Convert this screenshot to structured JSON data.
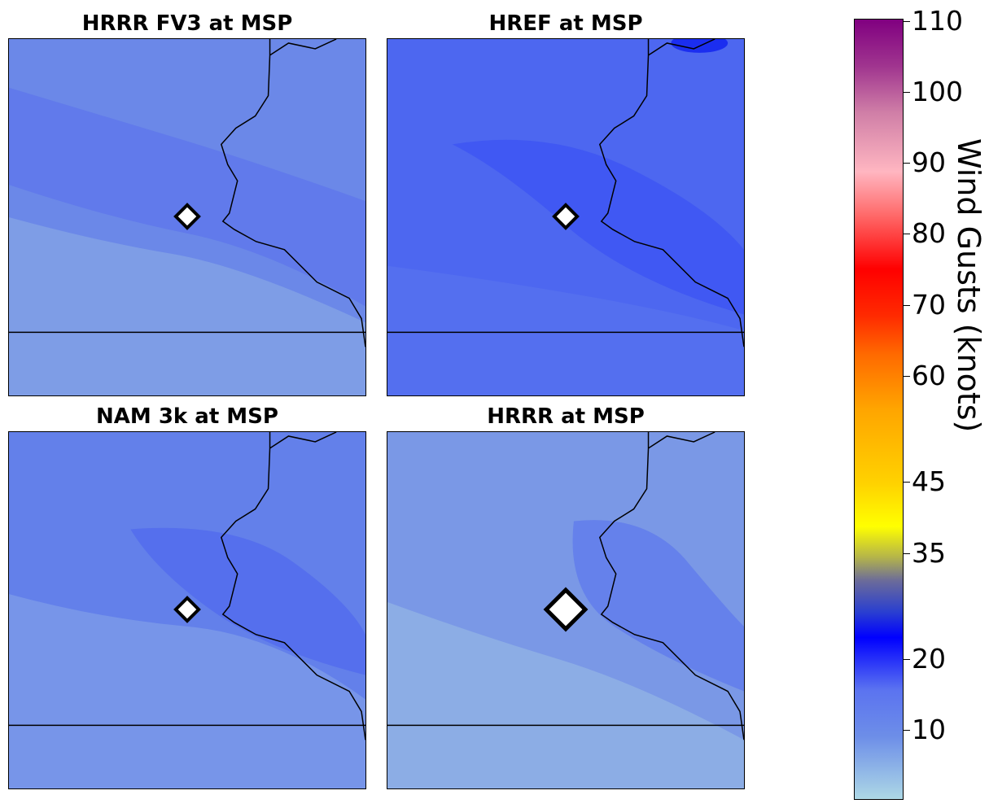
{
  "panels": [
    {
      "title": "HRRR FV3 at MSP",
      "fill": "#6b88e8",
      "streak": "#8aaee6",
      "dark": "#5a72ec"
    },
    {
      "title": "HREF at MSP",
      "fill": "#4d67f0",
      "streak": "#6b84ee",
      "dark": "#3a52f4"
    },
    {
      "title": "NAM 3k at MSP",
      "fill": "#6380ea",
      "streak": "#88a8e6",
      "dark": "#5068ee"
    },
    {
      "title": "HRRR at MSP",
      "fill": "#7a98e6",
      "streak": "#98bce4",
      "dark": "#5d78ec"
    }
  ],
  "colorbar": {
    "label": "Wind Gusts (knots)",
    "ticks": [
      "110",
      "100",
      "90",
      "80",
      "70",
      "60",
      "45",
      "35",
      "20",
      "10"
    ]
  }
}
